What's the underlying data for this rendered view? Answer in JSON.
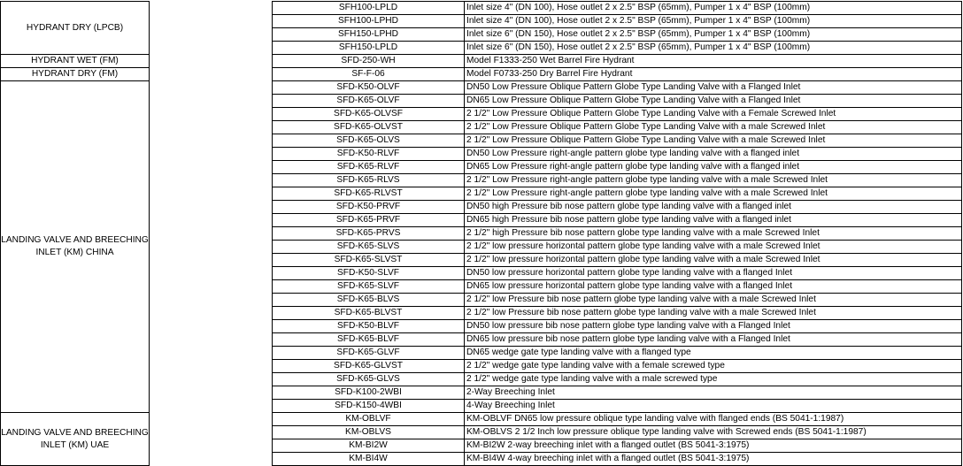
{
  "groups": [
    {
      "category": "HYDRANT DRY (LPCB)",
      "rows": [
        {
          "code": "SFH100-LPLD",
          "description": "Inlet size 4\" (DN 100), Hose outlet 2 x 2.5\" BSP (65mm), Pumper 1 x 4\" BSP (100mm)"
        },
        {
          "code": "SFH100-LPHD",
          "description": "Inlet size 4\" (DN 100), Hose outlet 2 x 2.5\" BSP (65mm), Pumper 1 x 4\" BSP (100mm)"
        },
        {
          "code": "SFH150-LPHD",
          "description": "Inlet size 6\" (DN 150), Hose outlet 2 x 2.5\" BSP (65mm), Pumper 1 x 4\" BSP (100mm)"
        },
        {
          "code": "SFH150-LPLD",
          "description": "Inlet size 6\" (DN 150), Hose outlet 2 x 2.5\" BSP (65mm), Pumper 1 x 4\" BSP (100mm)"
        }
      ]
    },
    {
      "category": "HYDRANT WET (FM)",
      "rows": [
        {
          "code": "SFD-250-WH",
          "description": "Model F1333-250 Wet Barrel Fire Hydrant"
        }
      ]
    },
    {
      "category": "HYDRANT DRY (FM)",
      "rows": [
        {
          "code": "SF-F-06",
          "description": "Model F0733-250 Dry Barrel Fire Hydrant"
        }
      ]
    },
    {
      "category": "LANDING VALVE AND BREECHING INLET (KM) CHINA",
      "rows": [
        {
          "code": "SFD-K50-OLVF",
          "description": "DN50 Low Pressure Oblique Pattern Globe Type Landing Valve with a Flanged Inlet"
        },
        {
          "code": "SFD-K65-OLVF",
          "description": "DN65 Low Pressure Oblique Pattern Globe Type Landing Valve with a Flanged Inlet"
        },
        {
          "code": "SFD-K65-OLVSF",
          "description": "2 1/2\" Low Pressure Oblique Pattern Globe Type Landing Valve with a Female Screwed Inlet"
        },
        {
          "code": "SFD-K65-OLVST",
          "description": "2 1/2\" Low Pressure Oblique Pattern Globe Type Landing Valve with a male Screwed Inlet"
        },
        {
          "code": "SFD-K65-OLVS",
          "description": "2 1/2\" Low Pressure Oblique Pattern Globe Type Landing Valve with a male Screwed Inlet"
        },
        {
          "code": "SFD-K50-RLVF",
          "description": "DN50 Low Pressure right-angle pattern globe type landing valve with a flanged inlet"
        },
        {
          "code": "SFD-K65-RLVF",
          "description": "DN65 Low Pressure right-angle pattern globe type landing valve with a flanged inlet"
        },
        {
          "code": "SFD-K65-RLVS",
          "description": "2 1/2\" Low Pressure right-angle pattern globe type landing valve with a male Screwed Inlet"
        },
        {
          "code": "SFD-K65-RLVST",
          "description": "2 1/2\" Low Pressure right-angle pattern globe type landing valve with a male Screwed Inlet"
        },
        {
          "code": "SFD-K50-PRVF",
          "description": "DN50 high Pressure bib nose pattern globe type landing valve with a flanged inlet"
        },
        {
          "code": "SFD-K65-PRVF",
          "description": "DN65 high Pressure bib nose pattern globe type landing valve with a flanged inlet"
        },
        {
          "code": "SFD-K65-PRVS",
          "description": "2 1/2\" high Pressure bib nose pattern globe type landing valve with a male Screwed Inlet"
        },
        {
          "code": "SFD-K65-SLVS",
          "description": "2 1/2\" low pressure horizontal pattern globe type landing valve with a male Screwed Inlet"
        },
        {
          "code": "SFD-K65-SLVST",
          "description": "2 1/2\" low pressure horizontal pattern globe type landing valve with a male Screwed Inlet"
        },
        {
          "code": "SFD-K50-SLVF",
          "description": "DN50 low pressure horizontal pattern globe type landing valve with a flanged Inlet"
        },
        {
          "code": "SFD-K65-SLVF",
          "description": "DN65 low pressure horizontal pattern globe type landing valve with a flanged Inlet"
        },
        {
          "code": "SFD-K65-BLVS",
          "description": "2 1/2\" low Pressure bib nose pattern globe type landing valve with a male Screwed Inlet"
        },
        {
          "code": "SFD-K65-BLVST",
          "description": "2 1/2\" low Pressure bib nose pattern globe type landing valve with a male Screwed Inlet"
        },
        {
          "code": "SFD-K50-BLVF",
          "description": "DN50 low pressure bib nose pattern globe type landing valve with a Flanged Inlet"
        },
        {
          "code": "SFD-K65-BLVF",
          "description": "DN65 low pressure bib nose pattern globe type landing valve with a Flanged Inlet"
        },
        {
          "code": "SFD-K65-GLVF",
          "description": "DN65 wedge gate type landing valve with a flanged type"
        },
        {
          "code": "SFD-K65-GLVST",
          "description": "2 1/2\" wedge gate type landing valve with a female screwed type"
        },
        {
          "code": "SFD-K65-GLVS",
          "description": "2 1/2\" wedge gate type landing valve with a male screwed type"
        },
        {
          "code": "SFD-K100-2WBI",
          "description": "2-Way Breeching Inlet"
        },
        {
          "code": "SFD-K150-4WBI",
          "description": "4-Way Breeching Inlet"
        }
      ]
    },
    {
      "category": "LANDING VALVE AND BREECHING INLET (KM) UAE",
      "rows": [
        {
          "code": "KM-OBLVF",
          "description": "KM-OBLVF DN65 low pressure oblique type landing valve with flanged ends (BS 5041-1:1987)"
        },
        {
          "code": "KM-OBLVS",
          "description": "KM-OBLVS 2 1/2 Inch low pressure oblique type landing valve with Screwed ends (BS 5041-1:1987)"
        },
        {
          "code": "KM-BI2W",
          "description": "KM-BI2W 2-way breeching inlet with a flanged outlet (BS 5041-3:1975)"
        },
        {
          "code": "KM-BI4W",
          "description": "KM-BI4W 4-way breeching inlet with a flanged outlet (BS 5041-3:1975)"
        }
      ]
    }
  ]
}
